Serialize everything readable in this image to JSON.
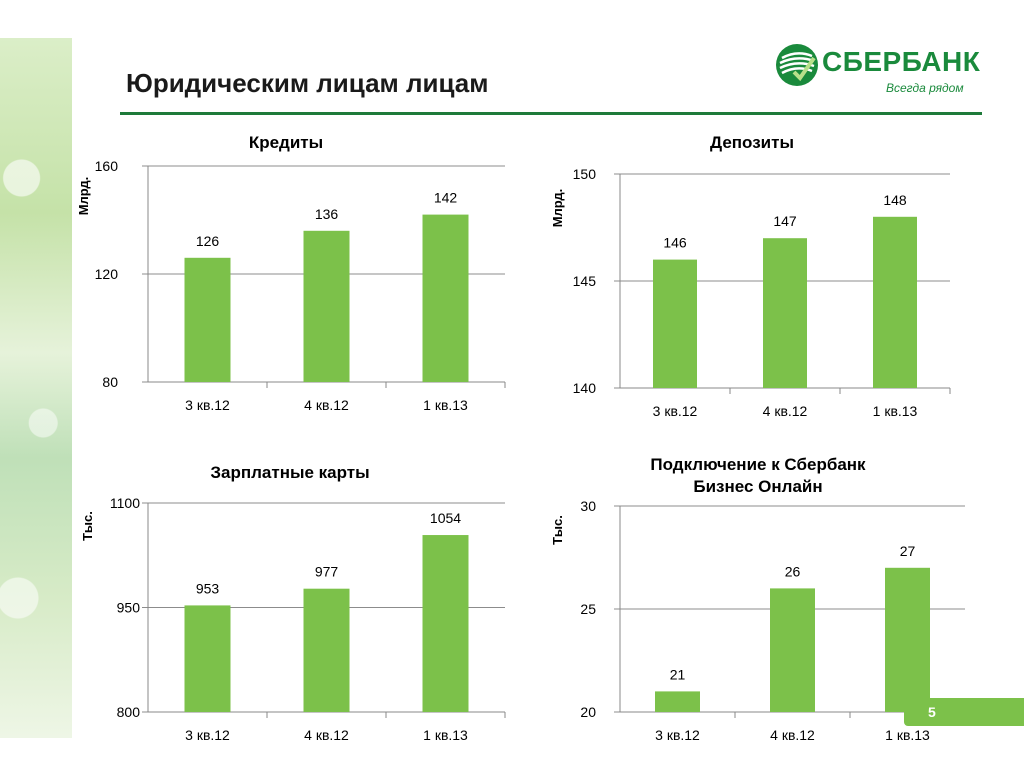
{
  "slide": {
    "title": "Юридическим лицам лицам",
    "page_number": "5"
  },
  "logo": {
    "name": "СБЕРБАНК",
    "tagline": "Всегда рядом",
    "brand_color": "#1a8a3c"
  },
  "colors": {
    "bar": "#7cc14a",
    "axis": "#888888",
    "grid": "#8c8c8c"
  },
  "chart_data": [
    {
      "type": "bar",
      "title": "Кредиты",
      "ylabel": "Млрд.",
      "categories": [
        "3 кв.12",
        "4 кв.12",
        "1 кв.13"
      ],
      "values": [
        126,
        136,
        142
      ],
      "ylim": [
        80,
        160
      ],
      "yticks": [
        80,
        120,
        160
      ],
      "grid": true
    },
    {
      "type": "bar",
      "title": "Депозиты",
      "ylabel": "Млрд.",
      "categories": [
        "3 кв.12",
        "4 кв.12",
        "1 кв.13"
      ],
      "values": [
        146,
        147,
        148
      ],
      "ylim": [
        140,
        150
      ],
      "yticks": [
        140,
        145,
        150
      ],
      "grid": true
    },
    {
      "type": "bar",
      "title": "Зарплатные карты",
      "ylabel": "Тыс.",
      "categories": [
        "3 кв.12",
        "4 кв.12",
        "1 кв.13"
      ],
      "values": [
        953,
        977,
        1054
      ],
      "ylim": [
        800,
        1100
      ],
      "yticks": [
        800,
        950,
        1100
      ],
      "grid": true
    },
    {
      "type": "bar",
      "title": "Подключение к Сбербанк Бизнес Онлайн",
      "title_lines": [
        "Подключение к Сбербанк",
        "Бизнес Онлайн"
      ],
      "ylabel": "Тыс.",
      "categories": [
        "3 кв.12",
        "4 кв.12",
        "1 кв.13"
      ],
      "values": [
        21,
        26,
        27
      ],
      "ylim": [
        20,
        30
      ],
      "yticks": [
        20,
        25,
        30
      ],
      "grid": true
    }
  ]
}
